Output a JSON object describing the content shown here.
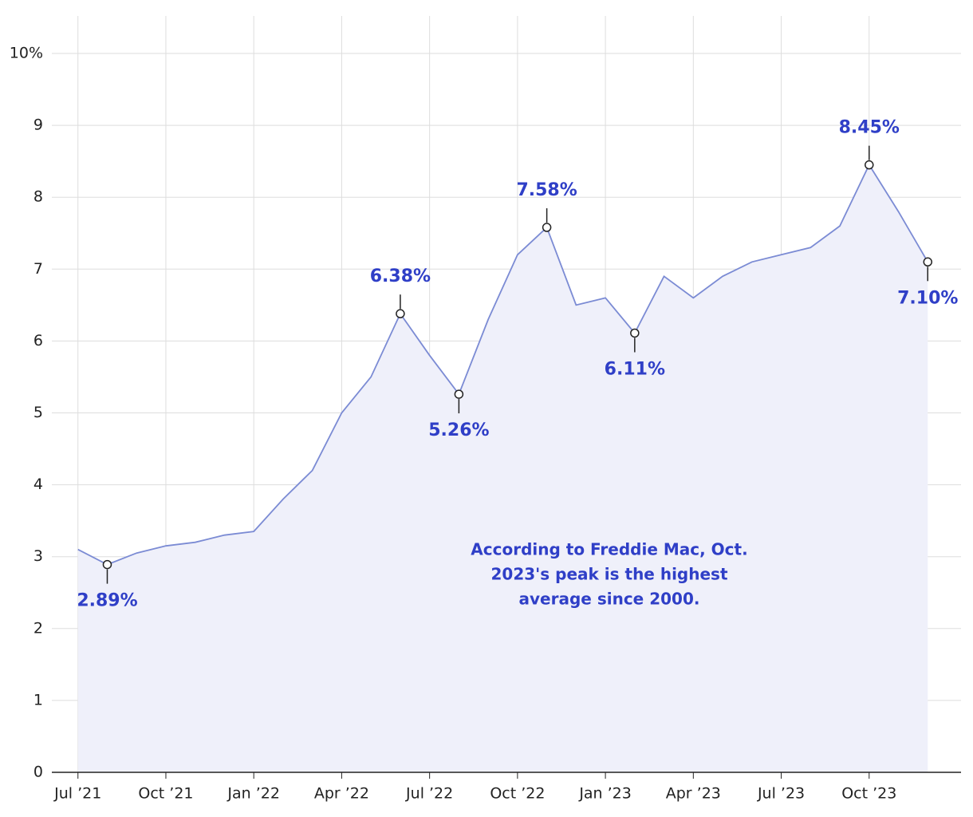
{
  "chart_data": {
    "type": "line",
    "x": [
      "2021-07",
      "2021-08",
      "2021-09",
      "2021-10",
      "2021-11",
      "2021-12",
      "2022-01",
      "2022-02",
      "2022-03",
      "2022-04",
      "2022-05",
      "2022-06",
      "2022-07",
      "2022-08",
      "2022-09",
      "2022-10",
      "2022-11",
      "2022-12",
      "2023-01",
      "2023-02",
      "2023-03",
      "2023-04",
      "2023-05",
      "2023-06",
      "2023-07",
      "2023-08",
      "2023-09",
      "2023-10",
      "2023-11",
      "2023-12"
    ],
    "series": [
      {
        "color": "#7b8bd4",
        "fill": "#eff0fa",
        "values": [
          3.1,
          2.89,
          3.05,
          3.15,
          3.2,
          3.3,
          3.35,
          3.8,
          4.2,
          5.0,
          5.5,
          6.38,
          5.8,
          5.26,
          6.3,
          7.2,
          7.58,
          6.5,
          6.6,
          6.11,
          6.9,
          6.6,
          6.9,
          7.1,
          7.2,
          7.3,
          7.6,
          8.45,
          7.8,
          7.1
        ],
        "value_labels": [
          null,
          "2.89%",
          null,
          null,
          null,
          null,
          null,
          null,
          null,
          null,
          null,
          "6.38%",
          null,
          "5.26%",
          null,
          null,
          "7.58%",
          null,
          null,
          "6.11%",
          null,
          null,
          null,
          null,
          null,
          null,
          null,
          "8.45%",
          null,
          "7.10%"
        ]
      }
    ],
    "xlim": [
      "2021-06",
      "2024-01"
    ],
    "xticks": [
      {
        "value": "2021-07",
        "label": "Jul ’21"
      },
      {
        "value": "2021-10",
        "label": "Oct ’21"
      },
      {
        "value": "2022-01",
        "label": "Jan ’22"
      },
      {
        "value": "2022-04",
        "label": "Apr ’22"
      },
      {
        "value": "2022-07",
        "label": "Jul ’22"
      },
      {
        "value": "2022-10",
        "label": "Oct ’22"
      },
      {
        "value": "2023-01",
        "label": "Jan ’23"
      },
      {
        "value": "2023-04",
        "label": "Apr ’23"
      },
      {
        "value": "2023-07",
        "label": "Jul ’23"
      },
      {
        "value": "2023-10",
        "label": "Oct ’23"
      }
    ],
    "ylim": [
      0,
      10
    ],
    "yticks": [
      0,
      1,
      2,
      3,
      4,
      5,
      6,
      7,
      8,
      9,
      {
        "value": 10,
        "label": "10%"
      }
    ],
    "grid": true,
    "label_color": "#2f3fc7",
    "note": [
      "According to Freddie Mac, Oct.",
      "2023's peak is the highest",
      "average since 2000."
    ]
  }
}
